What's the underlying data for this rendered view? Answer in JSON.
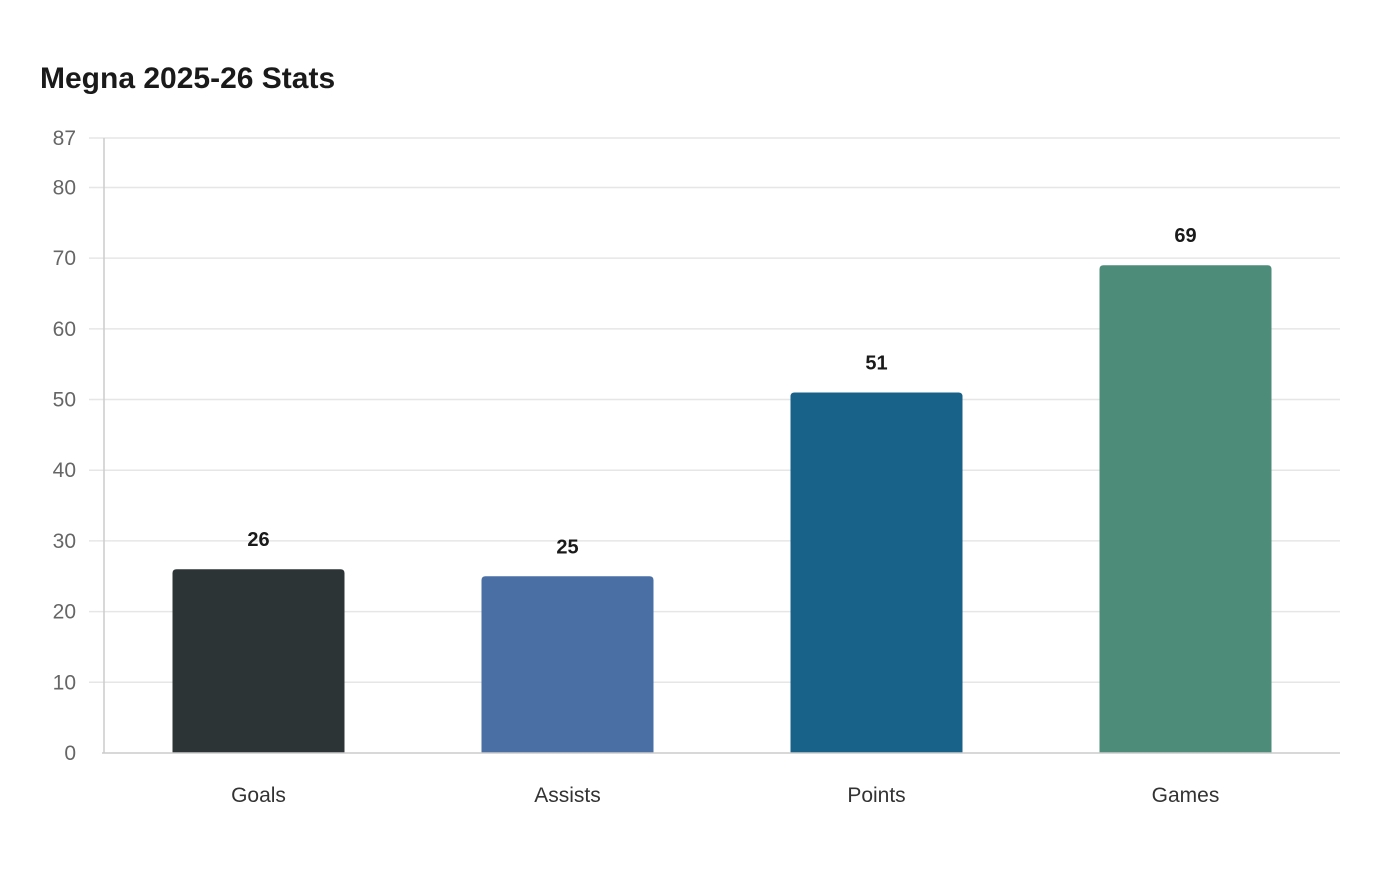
{
  "chart_data": {
    "type": "bar",
    "title": "Megna 2025-26 Stats",
    "xlabel": "",
    "ylabel": "",
    "categories": [
      "Goals",
      "Assists",
      "Points",
      "Games"
    ],
    "values": [
      26,
      25,
      51,
      69
    ],
    "data_labels": [
      "26",
      "25",
      "51",
      "69"
    ],
    "colors": [
      "#2d3436",
      "#4a6fa5",
      "#186188",
      "#4e8c7a"
    ],
    "ylim": [
      0,
      87
    ],
    "yticks": [
      0,
      10,
      20,
      30,
      40,
      50,
      60,
      70,
      80,
      87
    ],
    "grid": true,
    "legend": "none"
  }
}
